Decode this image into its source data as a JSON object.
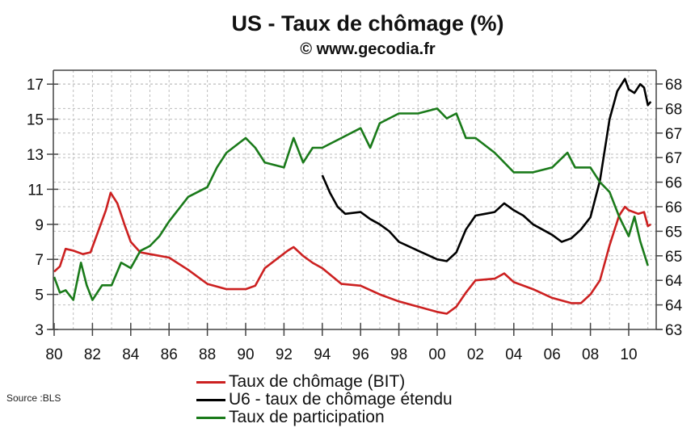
{
  "title": "US - Taux de chômage (%)",
  "subtitle": "© www.gecodia.fr",
  "source": "Source :BLS",
  "colors": {
    "bit": "#cc2020",
    "u6": "#000000",
    "participation": "#1a7a1a",
    "grid": "#bdbdbd",
    "axis": "#444444"
  },
  "legend": [
    {
      "label": "Taux de chômage (BIT)",
      "color": "#cc2020"
    },
    {
      "label": "U6 - taux de chômage étendu",
      "color": "#000000"
    },
    {
      "label": "Taux de participation",
      "color": "#1a7a1a"
    }
  ],
  "chart_data": {
    "type": "line",
    "title": "US - Taux de chômage (%)",
    "subtitle": "© www.gecodia.fr",
    "xlabel": "",
    "ylabel": "",
    "x_ticks": [
      "80",
      "82",
      "84",
      "86",
      "88",
      "90",
      "92",
      "94",
      "96",
      "98",
      "00",
      "02",
      "04",
      "06",
      "08",
      "10"
    ],
    "y_left_ticks": [
      3,
      5,
      7,
      9,
      11,
      13,
      15,
      17
    ],
    "y_right_ticks": [
      "63",
      "64",
      "64",
      "65",
      "65",
      "66",
      "66",
      "67",
      "67",
      "68",
      "68"
    ],
    "ylim_left": [
      3,
      17.8
    ],
    "ylim_right": [
      63,
      68.25
    ],
    "xlim": [
      1980,
      2011.5
    ],
    "grid": true,
    "legend_position": "bottom",
    "series": [
      {
        "name": "Taux de chômage (BIT)",
        "axis": "left",
        "x": [
          1980,
          1980.3,
          1980.6,
          1981,
          1981.5,
          1981.9,
          1982.3,
          1982.7,
          1982.95,
          1983.3,
          1983.7,
          1984,
          1984.5,
          1985,
          1986,
          1987,
          1988,
          1989,
          1990,
          1990.5,
          1991,
          1991.6,
          1992.2,
          1992.5,
          1993,
          1993.5,
          1994,
          1995,
          1996,
          1997,
          1998,
          1999,
          2000,
          2000.5,
          2001,
          2001.5,
          2002,
          2003,
          2003.5,
          2004,
          2005,
          2006,
          2007,
          2007.5,
          2008,
          2008.5,
          2009,
          2009.5,
          2009.8,
          2010,
          2010.5,
          2010.8,
          2011,
          2011.15
        ],
        "values": [
          6.3,
          6.6,
          7.6,
          7.5,
          7.3,
          7.4,
          8.6,
          9.8,
          10.8,
          10.2,
          8.9,
          8.0,
          7.4,
          7.3,
          7.1,
          6.4,
          5.6,
          5.3,
          5.3,
          5.5,
          6.5,
          7.0,
          7.5,
          7.7,
          7.2,
          6.8,
          6.5,
          5.6,
          5.5,
          5.0,
          4.6,
          4.3,
          4.0,
          3.9,
          4.3,
          5.1,
          5.8,
          5.9,
          6.2,
          5.7,
          5.3,
          4.8,
          4.5,
          4.5,
          5.0,
          5.8,
          7.8,
          9.5,
          10.0,
          9.8,
          9.6,
          9.7,
          8.9,
          9.0
        ]
      },
      {
        "name": "U6 - taux de chômage étendu",
        "axis": "left",
        "x": [
          1994,
          1994.4,
          1994.8,
          1995.2,
          1996,
          1996.5,
          1997,
          1997.5,
          1998,
          1999,
          2000,
          2000.5,
          2001,
          2001.5,
          2002,
          2002.5,
          2003,
          2003.5,
          2004,
          2004.5,
          2005,
          2006,
          2006.5,
          2007,
          2007.5,
          2008,
          2008.5,
          2009,
          2009.4,
          2009.8,
          2010,
          2010.3,
          2010.6,
          2010.8,
          2011,
          2011.15
        ],
        "values": [
          11.8,
          10.8,
          10.0,
          9.6,
          9.7,
          9.3,
          9.0,
          8.6,
          8.0,
          7.5,
          7.0,
          6.9,
          7.4,
          8.7,
          9.5,
          9.6,
          9.7,
          10.2,
          9.8,
          9.5,
          9.0,
          8.4,
          8.0,
          8.2,
          8.7,
          9.4,
          11.5,
          15.0,
          16.6,
          17.3,
          16.7,
          16.5,
          17.0,
          16.8,
          15.8,
          16.0
        ]
      },
      {
        "name": "Taux de participation",
        "axis": "right",
        "x": [
          1980,
          1980.3,
          1980.6,
          1981,
          1981.4,
          1981.7,
          1982,
          1982.5,
          1983,
          1983.5,
          1984,
          1984.5,
          1985,
          1985.5,
          1986,
          1987,
          1988,
          1988.5,
          1989,
          1990,
          1990.5,
          1991,
          1992,
          1992.5,
          1993,
          1993.5,
          1994,
          1995,
          1996,
          1996.5,
          1997,
          1998,
          1999,
          2000,
          2000.5,
          2001,
          2001.5,
          2002,
          2003,
          2004,
          2005,
          2006,
          2006.8,
          2007.2,
          2008,
          2008.5,
          2009,
          2009.5,
          2010,
          2010.3,
          2010.6,
          2011
        ],
        "values": [
          64.07,
          63.75,
          63.8,
          63.6,
          64.36,
          63.9,
          63.6,
          63.9,
          63.9,
          64.36,
          64.25,
          64.6,
          64.7,
          64.9,
          65.2,
          65.7,
          65.9,
          66.3,
          66.6,
          66.9,
          66.7,
          66.4,
          66.3,
          66.9,
          66.4,
          66.7,
          66.7,
          66.9,
          67.1,
          66.7,
          67.2,
          67.4,
          67.4,
          67.5,
          67.3,
          67.4,
          66.9,
          66.9,
          66.6,
          66.2,
          66.2,
          66.3,
          66.6,
          66.3,
          66.3,
          66.0,
          65.8,
          65.3,
          64.9,
          65.3,
          64.8,
          64.3
        ]
      }
    ]
  }
}
